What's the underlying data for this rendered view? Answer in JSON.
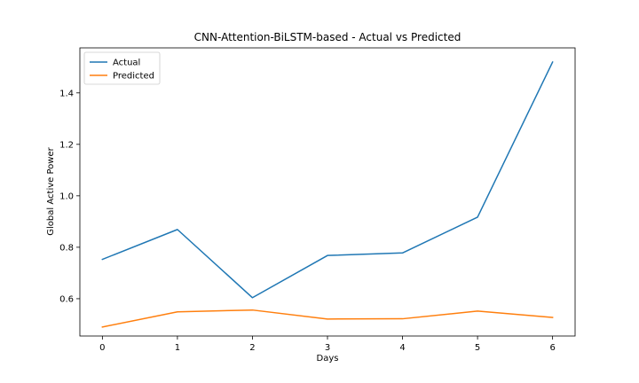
{
  "chart_data": {
    "type": "line",
    "title": "CNN-Attention-BiLSTM-based - Actual vs Predicted",
    "xlabel": "Days",
    "ylabel": "Global Active Power",
    "x": [
      0,
      1,
      2,
      3,
      4,
      5,
      6
    ],
    "xticks": [
      "0",
      "1",
      "2",
      "3",
      "4",
      "5",
      "6"
    ],
    "yticks": [
      "0.6",
      "0.8",
      "1.0",
      "1.2",
      "1.4"
    ],
    "ytick_values": [
      0.6,
      0.8,
      1.0,
      1.2,
      1.4
    ],
    "xlim": [
      -0.3,
      6.3
    ],
    "ylim": [
      0.455,
      1.575
    ],
    "grid": false,
    "legend_position": "top-left",
    "series": [
      {
        "name": "Actual",
        "color": "#1f77b4",
        "values": [
          0.753,
          0.869,
          0.604,
          0.768,
          0.778,
          0.917,
          1.52
        ]
      },
      {
        "name": "Predicted",
        "color": "#ff7f0e",
        "values": [
          0.49,
          0.549,
          0.556,
          0.521,
          0.522,
          0.552,
          0.527
        ]
      }
    ]
  }
}
